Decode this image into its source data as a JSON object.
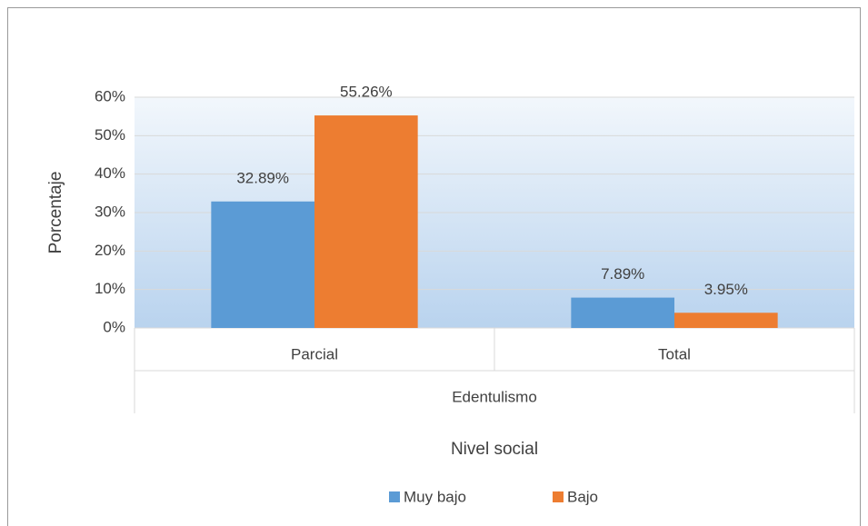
{
  "chart_data": {
    "type": "bar",
    "categories": [
      "Parcial",
      "Total"
    ],
    "group_label": "Edentulismo",
    "series": [
      {
        "name": "Muy bajo",
        "color": "#5b9bd5",
        "values": [
          32.89,
          7.89
        ],
        "value_labels": [
          "32.89%",
          "7.89%"
        ]
      },
      {
        "name": "Bajo",
        "color": "#ed7d31",
        "values": [
          55.26,
          3.95
        ],
        "value_labels": [
          "55.26%",
          "3.95%"
        ]
      }
    ],
    "ylabel": "Porcentaje",
    "xlabel": "Nivel social",
    "ylim": [
      0,
      60
    ],
    "yticks": [
      {
        "value": 0,
        "label": "0%"
      },
      {
        "value": 10,
        "label": "10%"
      },
      {
        "value": 20,
        "label": "20%"
      },
      {
        "value": 30,
        "label": "30%"
      },
      {
        "value": 40,
        "label": "40%"
      },
      {
        "value": 50,
        "label": "50%"
      },
      {
        "value": 60,
        "label": "60%"
      }
    ],
    "grid": true,
    "legend": "bottom"
  }
}
